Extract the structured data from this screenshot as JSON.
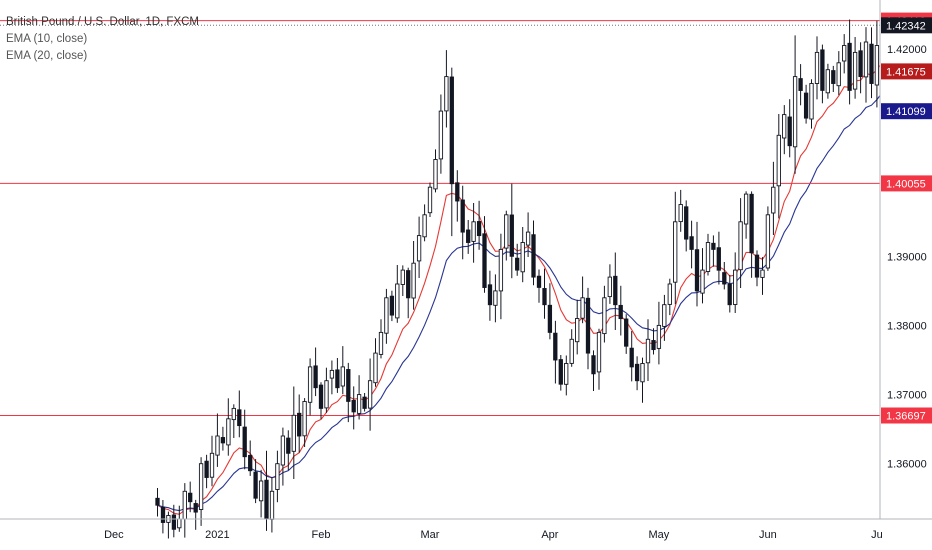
{
  "chart_data": {
    "type": "candlestick",
    "title": "British Pound / U.S. Dollar, 1D, FXCM",
    "indicators": [
      {
        "name": "EMA (10, close)",
        "color": "#e53935"
      },
      {
        "name": "EMA (20, close)",
        "color": "#283593"
      }
    ],
    "ylim": [
      1.352,
      1.4265
    ],
    "y_ticks": [
      1.36,
      1.37,
      1.38,
      1.39,
      1.4,
      1.42
    ],
    "y_tick_labels": [
      "1.36000",
      "1.37000",
      "1.38000",
      "1.39000",
      "1.40000",
      "1.42000"
    ],
    "x_labels": [
      {
        "label": "Dec",
        "index": -18
      },
      {
        "label": "2021",
        "index": 1
      },
      {
        "label": "Feb",
        "index": 20
      },
      {
        "label": "Mar",
        "index": 40
      },
      {
        "label": "Apr",
        "index": 62
      },
      {
        "label": "May",
        "index": 82
      },
      {
        "label": "Jun",
        "index": 102
      },
      {
        "label": "Ju",
        "index": 122
      }
    ],
    "horizontal_levels": [
      {
        "value": 1.40055,
        "label": "1.40055",
        "color": "#f23645"
      },
      {
        "value": 1.36697,
        "label": "1.36697",
        "color": "#f23645"
      },
      {
        "value": 1.4241,
        "label": "1.42410",
        "color": "#f23645"
      }
    ],
    "price_tags": [
      {
        "value": 1.4241,
        "label": "1.42410",
        "bg": "#f23645"
      },
      {
        "value": 1.42342,
        "label": "1.42342",
        "bg": "#131722"
      },
      {
        "value": 1.41675,
        "label": "1.41675",
        "bg": "#b71c1c"
      },
      {
        "value": 1.41099,
        "label": "1.41099",
        "bg": "#1a1a8c"
      },
      {
        "value": 1.40055,
        "label": "1.40055",
        "bg": "#f23645"
      },
      {
        "value": 1.36697,
        "label": "1.36697",
        "bg": "#f23645"
      }
    ],
    "last_price": 1.42342,
    "bar_spacing_px": 5.45,
    "first_index": -10,
    "closes": [
      1.354,
      1.3515,
      1.3525,
      1.3505,
      1.352,
      1.356,
      1.3545,
      1.353,
      1.36,
      1.358,
      1.3615,
      1.364,
      1.363,
      1.3665,
      1.368,
      1.3655,
      1.361,
      1.359,
      1.355,
      1.3575,
      1.352,
      1.356,
      1.36,
      1.364,
      1.3615,
      1.367,
      1.364,
      1.369,
      1.374,
      1.371,
      1.368,
      1.372,
      1.3735,
      1.371,
      1.374,
      1.369,
      1.3675,
      1.37,
      1.368,
      1.372,
      1.376,
      1.379,
      1.384,
      1.3815,
      1.386,
      1.388,
      1.384,
      1.389,
      1.393,
      1.396,
      1.4,
      1.404,
      1.411,
      1.416,
      1.4005,
      1.398,
      1.3935,
      1.392,
      1.395,
      1.393,
      1.3855,
      1.383,
      1.385,
      1.391,
      1.396,
      1.39,
      1.388,
      1.392,
      1.3935,
      1.387,
      1.3855,
      1.383,
      1.379,
      1.375,
      1.3715,
      1.3745,
      1.378,
      1.381,
      1.384,
      1.376,
      1.373,
      1.379,
      1.384,
      1.387,
      1.383,
      1.381,
      1.377,
      1.374,
      1.372,
      1.3745,
      1.378,
      1.3765,
      1.38,
      1.383,
      1.386,
      1.395,
      1.3975,
      1.3925,
      1.391,
      1.385,
      1.388,
      1.392,
      1.391,
      1.388,
      1.386,
      1.383,
      1.388,
      1.395,
      1.399,
      1.3905,
      1.387,
      1.388,
      1.396,
      1.4,
      1.4075,
      1.4105,
      1.406,
      1.416,
      1.414,
      1.41,
      1.415,
      1.4195,
      1.414,
      1.417,
      1.415,
      1.418,
      1.4205,
      1.414,
      1.4195,
      1.416,
      1.421,
      1.415,
      1.4205,
      1.4234
    ]
  }
}
